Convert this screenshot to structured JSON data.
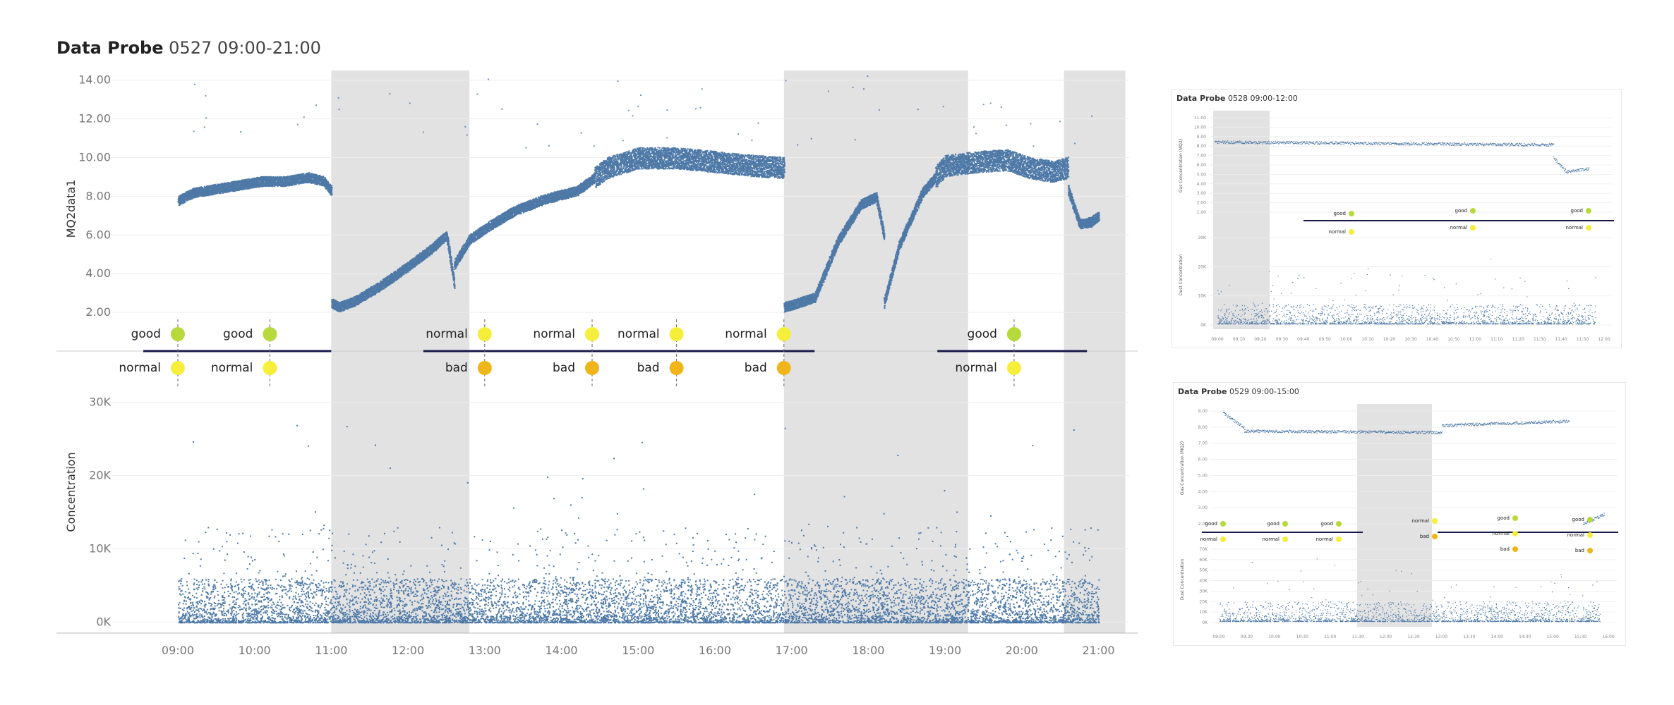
{
  "colors": {
    "scatter": "#4e79a7",
    "good": "#b6d93b",
    "normal": "#f5ee3b",
    "bad": "#f0b619",
    "band": "#e2e2e2",
    "event_line": "#1a1a4a",
    "grid": "#ededed"
  },
  "main": {
    "title_bold": "Data Probe",
    "title_rest": "0527 09:00-21:00",
    "ylabel_top": "MQ2data1",
    "ylabel_bottom": "Concentration"
  },
  "chart_data": [
    {
      "type": "scatter",
      "title": "Data Probe 0527 09:00-21:00",
      "x_ticks": [
        "09:00",
        "10:00",
        "11:00",
        "12:00",
        "13:00",
        "14:00",
        "15:00",
        "16:00",
        "17:00",
        "18:00",
        "19:00",
        "20:00",
        "21:00"
      ],
      "x_range_hours": [
        8.2,
        21.4
      ],
      "shaded_periods": [
        [
          11.0,
          12.8
        ],
        [
          16.9,
          19.3
        ],
        [
          20.55,
          21.35
        ]
      ],
      "upper": {
        "ylabel": "MQ2data1",
        "ylim": [
          0,
          14.5
        ],
        "y_ticks": [
          "2.00",
          "4.00",
          "6.00",
          "8.00",
          "10.00",
          "12.00",
          "14.00"
        ],
        "series": [
          {
            "x": [
              9.0,
              9.2,
              9.5,
              9.8,
              10.1,
              10.4,
              10.7,
              10.9,
              11.0
            ],
            "y": [
              7.8,
              8.2,
              8.4,
              8.6,
              8.8,
              8.8,
              9.0,
              8.8,
              8.3
            ]
          },
          {
            "x": [
              11.0,
              11.1,
              11.3,
              11.6,
              12.0,
              12.3,
              12.5,
              12.6
            ],
            "y": [
              2.5,
              2.3,
              2.6,
              3.3,
              4.4,
              5.3,
              6.0,
              3.5
            ]
          },
          {
            "x": [
              12.6,
              12.8,
              13.1,
              13.4,
              13.8,
              14.2,
              14.6,
              15.0,
              15.5,
              16.0,
              16.5,
              16.9
            ],
            "y": [
              4.5,
              5.8,
              6.6,
              7.3,
              7.9,
              8.3,
              9.5,
              10.0,
              10.0,
              9.8,
              9.6,
              9.5
            ]
          },
          {
            "x": [
              16.9,
              17.0,
              17.3,
              17.6,
              17.9,
              18.1,
              18.2
            ],
            "y": [
              2.3,
              2.4,
              2.8,
              5.7,
              7.6,
              8.0,
              6.0
            ]
          },
          {
            "x": [
              18.2,
              18.4,
              18.7,
              19.0,
              19.4,
              19.8,
              20.1,
              20.4,
              20.6
            ],
            "y": [
              2.5,
              5.5,
              8.2,
              9.6,
              9.8,
              9.9,
              9.5,
              9.3,
              9.5
            ]
          },
          {
            "x": [
              20.6,
              20.75,
              20.9,
              21.0
            ],
            "y": [
              8.4,
              6.6,
              6.7,
              7.0
            ]
          }
        ]
      },
      "lower": {
        "ylabel": "Concentration",
        "ylim": [
          -1500,
          37000
        ],
        "y_ticks": [
          "0K",
          "10K",
          "20K",
          "30K"
        ],
        "baseline_range": [
          0,
          6000
        ]
      },
      "events_axis_value": 0.25,
      "events": [
        {
          "x": 9.0,
          "top": "good",
          "bottom": "normal"
        },
        {
          "x": 10.2,
          "top": "good",
          "bottom": "normal"
        },
        {
          "x": 13.0,
          "top": "normal",
          "bottom": "bad"
        },
        {
          "x": 14.4,
          "top": "normal",
          "bottom": "bad"
        },
        {
          "x": 15.5,
          "top": "normal",
          "bottom": "bad"
        },
        {
          "x": 16.9,
          "top": "normal",
          "bottom": "bad"
        },
        {
          "x": 19.9,
          "top": "good",
          "bottom": "normal"
        }
      ],
      "event_segments": [
        [
          8.55,
          11.0
        ],
        [
          12.2,
          17.3
        ],
        [
          18.9,
          20.85
        ]
      ]
    },
    {
      "type": "scatter",
      "title": "Data Probe 0528 09:00-12:00",
      "title_bold": "Data Probe",
      "title_rest": "0528 09:00-12:00",
      "ylabel_top": "Gas Concentration (MQ2)",
      "ylabel_bottom": "Dust Concentration",
      "x_ticks": [
        "09:00",
        "09:10",
        "09:20",
        "09:30",
        "09:40",
        "09:50",
        "10:00",
        "10:10",
        "10:20",
        "10:30",
        "10:40",
        "10:50",
        "11:00",
        "11:10",
        "11:20",
        "11:30",
        "11:40",
        "11:50",
        "12:00"
      ],
      "upper_y_ticks": [
        "1.00",
        "2.00",
        "3.00",
        "4.00",
        "5.00",
        "6.00",
        "7.00",
        "8.00",
        "9.00",
        "10.00",
        "11.00"
      ],
      "lower_y_ticks": [
        "0K",
        "10K",
        "20K",
        "30K"
      ],
      "event_labels": [
        "good",
        "normal",
        "good",
        "normal",
        "good",
        "normal"
      ]
    },
    {
      "type": "scatter",
      "title": "Data Probe 0529 09:00-15:00",
      "title_bold": "Data Probe",
      "title_rest": "0529 09:00-15:00",
      "ylabel_top": "Gas Concentration (MQ2)",
      "ylabel_bottom": "Dust Concentration",
      "x_ticks": [
        "09:00",
        "09:30",
        "10:00",
        "10:30",
        "11:00",
        "11:30",
        "12:00",
        "12:30",
        "13:00",
        "13:30",
        "14:00",
        "14:30",
        "15:00",
        "15:30",
        "16:00"
      ],
      "upper_y_ticks": [
        "2.00",
        "3.00",
        "4.00",
        "5.00",
        "6.00",
        "7.00",
        "8.00",
        "9.00"
      ],
      "lower_y_ticks": [
        "0K",
        "10K",
        "20K",
        "30K",
        "40K",
        "50K",
        "60K",
        "70K"
      ],
      "event_labels": [
        "good",
        "normal",
        "good",
        "normal",
        "good",
        "normal",
        "normal",
        "bad",
        "good",
        "normal",
        "bad",
        "good",
        "normal",
        "bad"
      ]
    }
  ]
}
